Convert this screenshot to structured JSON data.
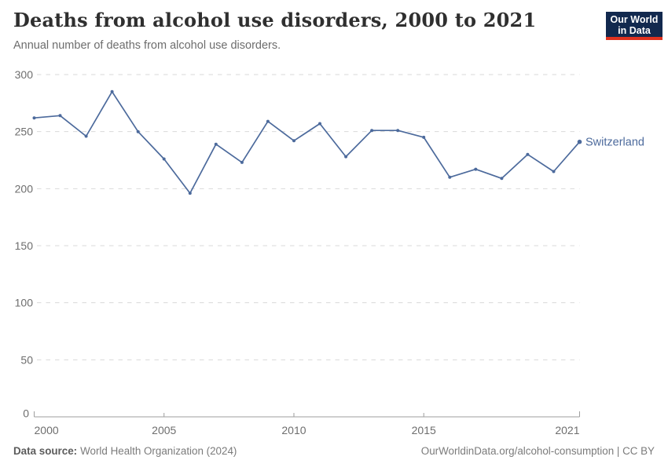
{
  "header": {
    "title": "Deaths from alcohol use disorders, 2000 to 2021",
    "subtitle": "Annual number of deaths from alcohol use disorders.",
    "logo": {
      "line1": "Our World",
      "line2": "in Data",
      "bg_color": "#12294e",
      "accent_color": "#e0321f"
    }
  },
  "chart_data": {
    "type": "line",
    "title": "Deaths from alcohol use disorders, 2000 to 2021",
    "xlabel": "",
    "ylabel": "",
    "x": [
      2000,
      2001,
      2002,
      2003,
      2004,
      2005,
      2006,
      2007,
      2008,
      2009,
      2010,
      2011,
      2012,
      2013,
      2014,
      2015,
      2016,
      2017,
      2018,
      2019,
      2020,
      2021
    ],
    "series": [
      {
        "name": "Switzerland",
        "color": "#4c6a9c",
        "values": [
          262,
          264,
          246,
          285,
          250,
          226,
          196,
          239,
          223,
          259,
          242,
          257,
          228,
          251,
          251,
          245,
          210,
          217,
          209,
          230,
          215,
          241
        ]
      }
    ],
    "xlim": [
      2000,
      2021
    ],
    "ylim": [
      0,
      300
    ],
    "xticks": [
      2000,
      2005,
      2010,
      2015,
      2021
    ],
    "yticks": [
      0,
      50,
      100,
      150,
      200,
      250,
      300
    ],
    "grid": "horizontal-dashed",
    "legend_position": "end-of-line-label",
    "colors": {
      "grid": "#d9d9d9",
      "axis": "#9e9e9e",
      "tick_label": "#6e6e6e"
    }
  },
  "footer": {
    "source_label": "Data source:",
    "source_value": "World Health Organization (2024)",
    "credit": "OurWorldinData.org/alcohol-consumption | CC BY"
  }
}
